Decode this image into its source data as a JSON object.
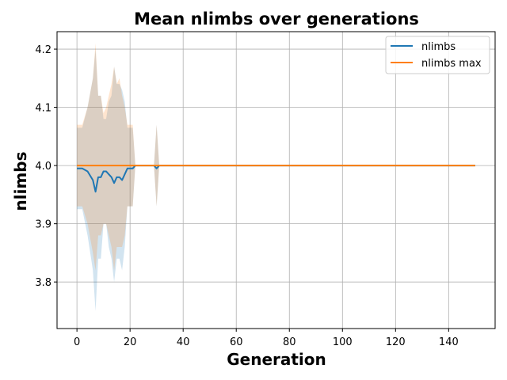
{
  "chart_data": {
    "type": "line",
    "title": "Mean nlimbs over generations",
    "xlabel": "Generation",
    "ylabel": "nlimbs",
    "xlim": [
      -7.5,
      157.5
    ],
    "ylim": [
      3.72,
      4.23
    ],
    "xticks": [
      0,
      20,
      40,
      60,
      80,
      100,
      120,
      140
    ],
    "yticks": [
      3.8,
      3.9,
      4.0,
      4.1,
      4.2
    ],
    "ytick_labels": [
      "3.8",
      "3.9",
      "4.0",
      "4.1",
      "4.2"
    ],
    "grid": true,
    "legend_position": "upper-right",
    "series": [
      {
        "name": "nlimbs",
        "color": "#1f77b4",
        "band_color": "#1f77b4",
        "points": [
          [
            0,
            3.995
          ],
          [
            2,
            3.995
          ],
          [
            4,
            3.99
          ],
          [
            6,
            3.975
          ],
          [
            7,
            3.955
          ],
          [
            8,
            3.98
          ],
          [
            9,
            3.98
          ],
          [
            10,
            3.99
          ],
          [
            11,
            3.99
          ],
          [
            12,
            3.985
          ],
          [
            13,
            3.98
          ],
          [
            14,
            3.97
          ],
          [
            15,
            3.98
          ],
          [
            16,
            3.98
          ],
          [
            17,
            3.975
          ],
          [
            18,
            3.985
          ],
          [
            19,
            3.995
          ],
          [
            20,
            3.995
          ],
          [
            21,
            3.995
          ],
          [
            22,
            4.0
          ],
          [
            23,
            4.0
          ],
          [
            24,
            4.0
          ],
          [
            25,
            4.0
          ],
          [
            26,
            4.0
          ],
          [
            27,
            4.0
          ],
          [
            28,
            4.0
          ],
          [
            29,
            4.0
          ],
          [
            30,
            3.995
          ],
          [
            31,
            4.0
          ],
          [
            150,
            4.0
          ]
        ],
        "band": [
          [
            0,
            3.925,
            4.065
          ],
          [
            2,
            3.925,
            4.065
          ],
          [
            4,
            3.88,
            4.1
          ],
          [
            6,
            3.82,
            4.15
          ],
          [
            7,
            3.75,
            4.2
          ],
          [
            8,
            3.84,
            4.12
          ],
          [
            9,
            3.84,
            4.12
          ],
          [
            10,
            3.9,
            4.08
          ],
          [
            11,
            3.9,
            4.08
          ],
          [
            12,
            3.86,
            4.11
          ],
          [
            13,
            3.84,
            4.12
          ],
          [
            14,
            3.8,
            4.17
          ],
          [
            15,
            3.84,
            4.14
          ],
          [
            16,
            3.84,
            4.14
          ],
          [
            17,
            3.82,
            4.13
          ],
          [
            18,
            3.86,
            4.11
          ],
          [
            19,
            3.93,
            4.065
          ],
          [
            20,
            3.93,
            4.065
          ],
          [
            21,
            3.93,
            4.065
          ],
          [
            22,
            4.0,
            4.0
          ],
          [
            29,
            4.0,
            4.0
          ],
          [
            30,
            3.93,
            4.07
          ],
          [
            31,
            4.0,
            4.0
          ],
          [
            150,
            4.0,
            4.0
          ]
        ]
      },
      {
        "name": "nlimbs max",
        "color": "#ff7f0e",
        "band_color": "#ff7f0e",
        "points": [
          [
            0,
            4.0
          ],
          [
            150,
            4.0
          ]
        ],
        "band": [
          [
            0,
            3.93,
            4.07
          ],
          [
            2,
            3.93,
            4.07
          ],
          [
            4,
            3.9,
            4.1
          ],
          [
            6,
            3.85,
            4.15
          ],
          [
            7,
            3.82,
            4.21
          ],
          [
            8,
            3.88,
            4.12
          ],
          [
            9,
            3.88,
            4.12
          ],
          [
            10,
            3.9,
            4.09
          ],
          [
            11,
            3.9,
            4.1
          ],
          [
            12,
            3.88,
            4.12
          ],
          [
            13,
            3.86,
            4.14
          ],
          [
            14,
            3.82,
            4.17
          ],
          [
            15,
            3.86,
            4.14
          ],
          [
            16,
            3.86,
            4.15
          ],
          [
            17,
            3.86,
            4.12
          ],
          [
            18,
            3.88,
            4.1
          ],
          [
            19,
            3.93,
            4.07
          ],
          [
            20,
            3.93,
            4.07
          ],
          [
            21,
            3.93,
            4.07
          ],
          [
            22,
            4.0,
            4.0
          ],
          [
            29,
            4.0,
            4.0
          ],
          [
            30,
            3.93,
            4.07
          ],
          [
            31,
            4.0,
            4.0
          ],
          [
            150,
            4.0,
            4.0
          ]
        ]
      }
    ]
  }
}
